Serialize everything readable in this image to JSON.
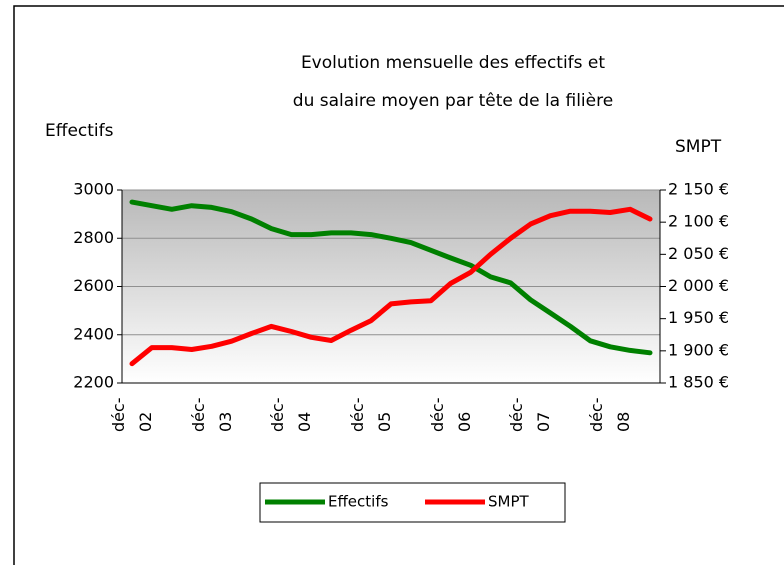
{
  "chart_data": {
    "type": "line",
    "title": [
      "Evolution mensuelle des effectifs et",
      "du salaire moyen par tête de la filière"
    ],
    "y_label": "Effectifs",
    "y2_label": "SMPT",
    "categories": [
      "déc-02",
      null,
      null,
      null,
      "déc-03",
      null,
      null,
      null,
      "déc-04",
      null,
      null,
      null,
      "déc-05",
      null,
      null,
      null,
      "déc-06",
      null,
      null,
      null,
      "déc-07",
      null,
      null,
      null,
      "déc-08",
      null,
      null
    ],
    "series": [
      {
        "name": "Effectifs",
        "color": "#008000",
        "values": [
          2950,
          2935,
          2920,
          2935,
          2928,
          2910,
          2880,
          2840,
          2815,
          2815,
          2822,
          2822,
          2815,
          2800,
          2782,
          2750,
          2718,
          2688,
          2640,
          2615,
          2545,
          2490,
          2435,
          2375,
          2350,
          2335,
          2325
        ]
      },
      {
        "name": "SMPT",
        "color": "#ff0000",
        "axis": "y2",
        "values": [
          1880,
          1905,
          1905,
          1902,
          1907,
          1915,
          1927,
          1938,
          1930,
          1921,
          1916,
          1932,
          1947,
          1973,
          1976,
          1978,
          2005,
          2022,
          2050,
          2075,
          2097,
          2110,
          2117,
          2117,
          2115,
          2120,
          2105
        ]
      }
    ],
    "ylim": [
      2200,
      3000
    ],
    "yticks": [
      2200,
      2400,
      2600,
      2800,
      3000
    ],
    "y2lim": [
      1850,
      2150
    ],
    "y2ticks": [
      {
        "value": 1850,
        "label": "1 850 €"
      },
      {
        "value": 1900,
        "label": "1 900 €"
      },
      {
        "value": 1950,
        "label": "1 950 €"
      },
      {
        "value": 2000,
        "label": "2 000 €"
      },
      {
        "value": 2050,
        "label": "2 050 €"
      },
      {
        "value": 2100,
        "label": "2 100 €"
      },
      {
        "value": 2150,
        "label": "2 150 €"
      }
    ],
    "grid": true,
    "legend": "bottom"
  }
}
